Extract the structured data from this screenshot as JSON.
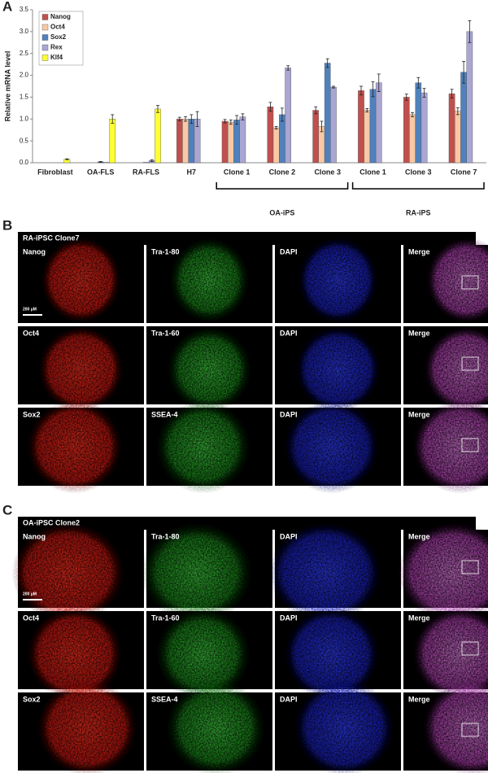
{
  "chart_data": {
    "type": "bar",
    "ylabel": "Relative mRNA level",
    "categories": [
      "Fibroblast",
      "OA-FLS",
      "RA-FLS",
      "H7",
      "Clone 1",
      "Clone 2",
      "Clone 3",
      "Clone 1",
      "Clone 3",
      "Clone 7"
    ],
    "group_labels": [
      "OA-iPS",
      "RA-iPS"
    ],
    "series": [
      {
        "name": "Nanog",
        "color": "#c0504d",
        "values": [
          0,
          0,
          0,
          1.0,
          0.95,
          1.28,
          1.2,
          1.65,
          1.5,
          1.58
        ],
        "errors": [
          0,
          0,
          0,
          0.04,
          0.04,
          0.1,
          0.08,
          0.1,
          0.07,
          0.1
        ]
      },
      {
        "name": "Oct4",
        "color": "#f8c9a4",
        "values": [
          0,
          0,
          0,
          1.0,
          0.93,
          0.8,
          0.83,
          1.2,
          1.1,
          1.18
        ],
        "errors": [
          0,
          0,
          0,
          0.05,
          0.05,
          0.03,
          0.12,
          0.04,
          0.05,
          0.08
        ]
      },
      {
        "name": "Sox2",
        "color": "#4f81bd",
        "values": [
          0,
          0.02,
          0.01,
          1.0,
          0.98,
          1.1,
          2.28,
          1.68,
          1.83,
          2.07
        ],
        "errors": [
          0,
          0.01,
          0,
          0.1,
          0.1,
          0.15,
          0.1,
          0.17,
          0.12,
          0.25
        ]
      },
      {
        "name": "Rex",
        "color": "#a9a6d4",
        "values": [
          0,
          0.01,
          0.05,
          1.0,
          1.05,
          2.17,
          1.73,
          1.83,
          1.6,
          3.0
        ],
        "errors": [
          0,
          0,
          0.02,
          0.17,
          0.07,
          0.05,
          0.02,
          0.2,
          0.1,
          0.25
        ]
      },
      {
        "name": "Klf4",
        "color": "#ffff33",
        "values": [
          0.08,
          1.0,
          1.23,
          0,
          0,
          0,
          0,
          0,
          0,
          0
        ],
        "errors": [
          0.01,
          0.1,
          0.08,
          0,
          0,
          0,
          0,
          0,
          0,
          0
        ]
      }
    ],
    "ylim": [
      0,
      3.5
    ],
    "yticks": [
      {
        "value": 0,
        "label": "0.0"
      },
      0.5,
      {
        "value": 1,
        "label": "1.0"
      },
      1.5,
      {
        "value": 2,
        "label": "2.0"
      },
      2.5,
      {
        "value": 3,
        "label": "3.0"
      },
      3.5
    ]
  },
  "panel_a_letter": "A",
  "panels": [
    {
      "letter": "B",
      "title": "RA-iPSC  Clone7",
      "scale_bar": "200 μM",
      "rows": [
        [
          "Nanog",
          "Tra-1-80",
          "DAPI",
          "Merge"
        ],
        [
          "Oct4",
          "Tra-1-60",
          "DAPI",
          "Merge"
        ],
        [
          "Sox2",
          "SSEA-4",
          "DAPI",
          "Merge"
        ]
      ]
    },
    {
      "letter": "C",
      "title": "OA-iPSC Clone2",
      "scale_bar": "200 μM",
      "rows": [
        [
          "Nanog",
          "Tra-1-80",
          "DAPI",
          "Merge"
        ],
        [
          "Oct4",
          "Tra-1-60",
          "DAPI",
          "Merge"
        ],
        [
          "Sox2",
          "SSEA-4",
          "DAPI",
          "Merge"
        ]
      ]
    }
  ]
}
